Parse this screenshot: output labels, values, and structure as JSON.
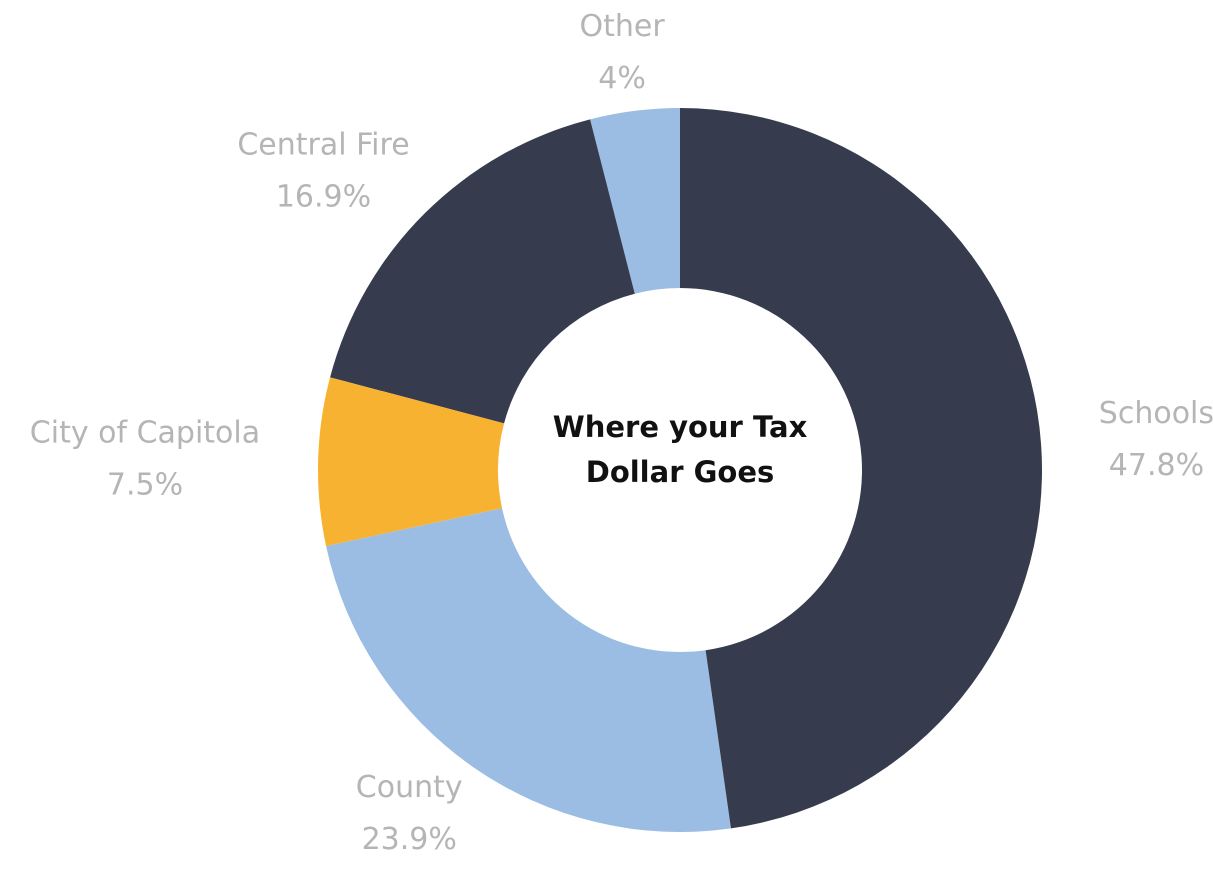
{
  "chart_data": {
    "type": "pie",
    "title": "Where your Tax Dollar Goes",
    "categories": [
      "Schools",
      "County",
      "City of Capitola",
      "Central Fire",
      "Other"
    ],
    "values": [
      47.8,
      23.9,
      7.5,
      16.9,
      4
    ],
    "value_labels": [
      "47.8%",
      "23.9%",
      "7.5%",
      "16.9%",
      "4%"
    ],
    "colors": [
      "#363b4e",
      "#9bbde3",
      "#f7b232",
      "#363b4e",
      "#9bbde3"
    ]
  }
}
